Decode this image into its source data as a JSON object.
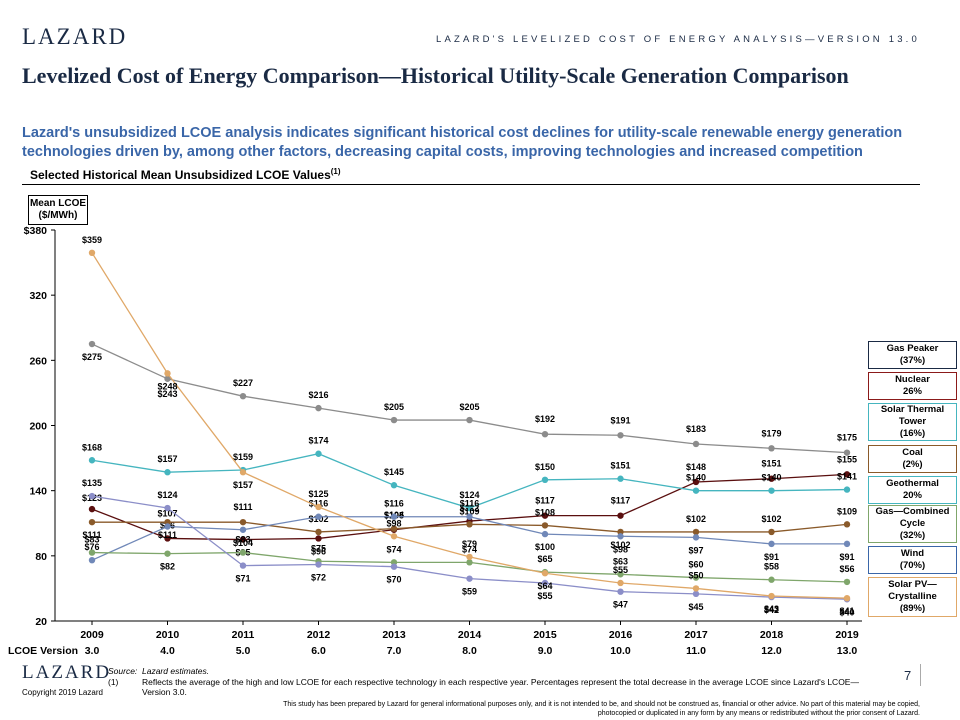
{
  "header": {
    "logo": "LAZARD",
    "right_text": "LAZARD'S LEVELIZED COST OF ENERGY ANALYSIS—VERSION 13.0"
  },
  "title": "Levelized Cost of Energy Comparison—Historical Utility-Scale Generation Comparison",
  "subtitle": "Lazard's unsubsidized LCOE analysis indicates significant historical cost declines for utility-scale renewable energy generation technologies driven by, among other factors, decreasing capital costs, improving technologies and increased competition",
  "section_title": "Selected Historical Mean Unsubsidized LCOE Values",
  "section_title_note": "(1)",
  "chart_data": {
    "type": "line",
    "ylabel": "Mean LCOE ($/MWh)",
    "ylim": [
      20,
      380
    ],
    "yticks": [
      "$380",
      "320",
      "260",
      "200",
      "140",
      "80",
      "20"
    ],
    "x": [
      "2009",
      "2010",
      "2011",
      "2012",
      "2013",
      "2014",
      "2015",
      "2016",
      "2017",
      "2018",
      "2019"
    ],
    "version_label": "LCOE Version",
    "versions": [
      "3.0",
      "4.0",
      "5.0",
      "6.0",
      "7.0",
      "8.0",
      "9.0",
      "10.0",
      "11.0",
      "12.0",
      "13.0"
    ],
    "series": [
      {
        "name": "Gas Peaker",
        "pct": "(37%)",
        "color": "#8c8c8c",
        "values": [
          275,
          243,
          227,
          216,
          205,
          205,
          192,
          191,
          183,
          179,
          175
        ],
        "labels": [
          "$275",
          "$243",
          "$227",
          "$216",
          "$205",
          "$205",
          "$192",
          "$191",
          "$183",
          "$179",
          "$175"
        ]
      },
      {
        "name": "Nuclear",
        "pct": "26%",
        "color": "#5a0f0f",
        "values": [
          123,
          96,
          95,
          96,
          104,
          112,
          117,
          117,
          148,
          151,
          155
        ],
        "labels": [
          "$123",
          "$96",
          "$95",
          "$96",
          "$104",
          "$112",
          "$117",
          "$117",
          "$148",
          "$151",
          "$155"
        ]
      },
      {
        "name": "Solar Thermal Tower",
        "pct": "(16%)",
        "color": "#45b5bf",
        "values": [
          168,
          157,
          159,
          174,
          145,
          124,
          150,
          151,
          140,
          140,
          141
        ],
        "labels": [
          "$168",
          "$157",
          "$159",
          "$174",
          "$145",
          "$124",
          "$150",
          "$151",
          "$140",
          "$140",
          "$141"
        ]
      },
      {
        "name": "Coal",
        "pct": "(2%)",
        "color": "#8a5a2a",
        "values": [
          111,
          111,
          111,
          102,
          105,
          109,
          108,
          102,
          102,
          102,
          109
        ],
        "labels": [
          "$111",
          "$111",
          "$111",
          "$102",
          "$105",
          "$109",
          "$108",
          "$102",
          "$102",
          "$102",
          "$109"
        ]
      },
      {
        "name": "Geothermal",
        "pct": "20%",
        "color": "#7088b8",
        "values": [
          76,
          107,
          104,
          116,
          116,
          116,
          100,
          98,
          97,
          91,
          91
        ],
        "labels": [
          "$76",
          "$107",
          "$104",
          "$116",
          "$116",
          "$116",
          "$100",
          "$98",
          "$97",
          "$91",
          "$91"
        ]
      },
      {
        "name": "Gas—Combined Cycle",
        "pct": "(32%)",
        "color": "#7fa66b",
        "values": [
          83,
          82,
          83,
          75,
          74,
          74,
          65,
          63,
          60,
          58,
          56
        ],
        "labels": [
          "$83",
          "$82",
          "$83",
          "$75",
          "$74",
          "$74",
          "$65",
          "$63",
          "$60",
          "$58",
          "$56"
        ]
      },
      {
        "name": "Wind",
        "pct": "(70%)",
        "color": "#8b8ec8",
        "values": [
          135,
          124,
          71,
          72,
          70,
          59,
          55,
          47,
          45,
          42,
          40
        ],
        "labels": [
          "$135",
          "$124",
          "$71",
          "$72",
          "$70",
          "$59",
          "$55",
          "$47",
          "$45",
          "$42",
          "$40"
        ]
      },
      {
        "name": "Solar PV—Crystalline",
        "pct": "(89%)",
        "color": "#e0a868",
        "values": [
          359,
          248,
          157,
          125,
          98,
          79,
          64,
          55,
          50,
          43,
          41
        ],
        "labels": [
          "$359",
          "$248",
          "$157",
          "$125",
          "$98",
          "$79",
          "$64",
          "$55",
          "$50",
          "$43",
          "$41"
        ]
      }
    ]
  },
  "legend": [
    {
      "line1": "Gas Peaker",
      "line2": "",
      "pct": "(37%)",
      "color": "#1a2a44"
    },
    {
      "line1": "Nuclear",
      "line2": "",
      "pct": "26%",
      "color": "#8b1a1a"
    },
    {
      "line1": "Solar Thermal",
      "line2": "Tower",
      "pct": "(16%)",
      "color": "#45b5bf"
    },
    {
      "line1": "Coal",
      "line2": "",
      "pct": "(2%)",
      "color": "#8a5a2a"
    },
    {
      "line1": "Geothermal",
      "line2": "",
      "pct": "20%",
      "color": "#45b5bf"
    },
    {
      "line1": "Gas—Combined",
      "line2": "Cycle",
      "pct": "(32%)",
      "color": "#7fa66b"
    },
    {
      "line1": "Wind",
      "line2": "",
      "pct": "(70%)",
      "color": "#3a66a8"
    },
    {
      "line1": "Solar PV—",
      "line2": "Crystalline",
      "pct": "(89%)",
      "color": "#e0a868"
    }
  ],
  "footer": {
    "logo": "LAZARD",
    "copyright": "Copyright 2019 Lazard",
    "source_label": "Source:",
    "source_text": "Lazard estimates.",
    "note_num": "(1)",
    "note_text": "Reflects the average of the high and low LCOE for each respective technology in each respective year. Percentages represent the total decrease in the average LCOE since Lazard's LCOE—Version 3.0.",
    "page": "7",
    "disclaimer": "This study has been prepared by Lazard for general informational purposes only, and it is not intended to be, and should not be construed as, financial or other advice. No part of this material may be copied, photocopied or duplicated in any form by any means or redistributed without the prior consent of Lazard."
  }
}
